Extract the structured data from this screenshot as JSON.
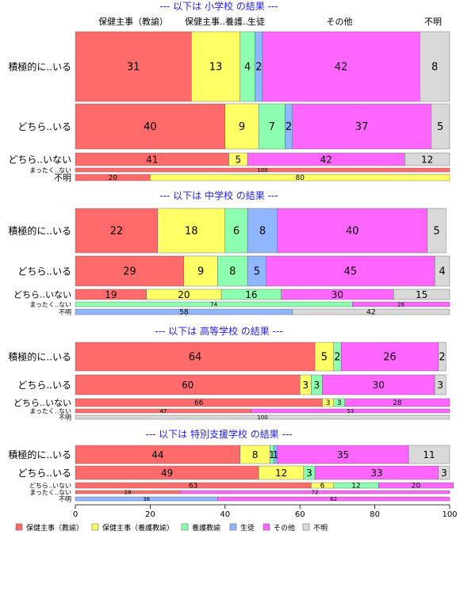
{
  "colors": {
    "保健主事（教諭）": "#ff6b6b",
    "保健主事（養護教諭）": "#ffff66",
    "養護教諭": "#8dffb0",
    "生徒": "#8fb6ff",
    "その他": "#ff66ff",
    "不明": "#d9d9d9"
  },
  "chart_data": {
    "type": "bar",
    "orientation": "horizontal-stacked-100",
    "xlim": [
      0,
      100
    ],
    "x_ticks": [
      "0",
      "20",
      "40",
      "60",
      "80",
      "100"
    ],
    "top_category_labels": [
      "保健主事（教諭）",
      "保健主事..養護..",
      "生徒",
      "その他",
      "不明"
    ],
    "legend": [
      "保健主事（教諭）",
      "保健主事（養護教諭）",
      "養護教諭",
      "生徒",
      "その他",
      "不明"
    ],
    "panels": [
      {
        "title": "--- 以下は 小学校 の結果 ---",
        "rows": [
          {
            "label": "積極的に..いる",
            "values": {
              "保健主事（教諭）": 31,
              "保健主事（養護教諭）": 13,
              "養護教諭": 4,
              "生徒": 2,
              "その他": 42,
              "不明": 8
            }
          },
          {
            "label": "どちら..いる",
            "values": {
              "保健主事（教諭）": 40,
              "保健主事（養護教諭）": 9,
              "養護教諭": 7,
              "生徒": 2,
              "その他": 37,
              "不明": 5
            }
          },
          {
            "label": "どちら..いない",
            "values": {
              "保健主事（教諭）": 41,
              "保健主事（養護教諭）": 5,
              "その他": 42,
              "不明": 12
            }
          },
          {
            "label": "まったく..ない",
            "values": {
              "保健主事（教諭）": 100
            }
          },
          {
            "label": "不明",
            "values": {
              "保健主事（教諭）": 20,
              "保健主事（養護教諭）": 80
            }
          }
        ]
      },
      {
        "title": "--- 以下は 中学校 の結果 ---",
        "rows": [
          {
            "label": "積極的に..いる",
            "values": {
              "保健主事（教諭）": 22,
              "保健主事（養護教諭）": 18,
              "養護教諭": 6,
              "生徒": 8,
              "その他": 40,
              "不明": 5
            }
          },
          {
            "label": "どちら..いる",
            "values": {
              "保健主事（教諭）": 29,
              "保健主事（養護教諭）": 9,
              "養護教諭": 8,
              "生徒": 5,
              "その他": 45,
              "不明": 4
            }
          },
          {
            "label": "どちら..いない",
            "values": {
              "保健主事（教諭）": 19,
              "保健主事（養護教諭）": 20,
              "養護教諭": 16,
              "その他": 30,
              "不明": 15
            }
          },
          {
            "label": "まったく..ない",
            "values": {
              "養護教諭": 74,
              "その他": 26
            }
          },
          {
            "label": "不明",
            "values": {
              "生徒": 58,
              "不明": 42
            }
          }
        ]
      },
      {
        "title": "--- 以下は 高等学校 の結果 ---",
        "rows": [
          {
            "label": "積極的に..いる",
            "values": {
              "保健主事（教諭）": 64,
              "保健主事（養護教諭）": 5,
              "養護教諭": 2,
              "その他": 26,
              "不明": 2
            }
          },
          {
            "label": "どちら..いる",
            "values": {
              "保健主事（教諭）": 60,
              "保健主事（養護教諭）": 3,
              "養護教諭": 3,
              "その他": 30,
              "不明": 3
            }
          },
          {
            "label": "どちら..いない",
            "values": {
              "保健主事（教諭）": 66,
              "保健主事（養護教諭）": 3,
              "養護教諭": 3,
              "その他": 28
            }
          },
          {
            "label": "まったく..ない",
            "values": {
              "保健主事（教諭）": 47,
              "その他": 53
            }
          },
          {
            "label": "不明",
            "values": {
              "不明": 100
            }
          }
        ]
      },
      {
        "title": "--- 以下は 特別支援学校 の結果 ---",
        "rows": [
          {
            "label": "積極的に..いる",
            "values": {
              "保健主事（教諭）": 44,
              "保健主事（養護教諭）": 8,
              "養護教諭": 1,
              "生徒": 1,
              "その他": 35,
              "不明": 11
            }
          },
          {
            "label": "どちら..いる",
            "values": {
              "保健主事（教諭）": 49,
              "保健主事（養護教諭）": 12,
              "養護教諭": 3,
              "その他": 33,
              "不明": 3
            }
          },
          {
            "label": "どちら..いない",
            "values": {
              "保健主事（教諭）": 63,
              "保健主事（養護教諭）": 6,
              "養護教諭": 12,
              "その他": 20
            }
          },
          {
            "label": "まったく..ない",
            "values": {
              "保健主事（教諭）": 28,
              "その他": 72
            }
          },
          {
            "label": "不明",
            "values": {
              "生徒": 38,
              "その他": 62
            }
          }
        ]
      }
    ]
  }
}
